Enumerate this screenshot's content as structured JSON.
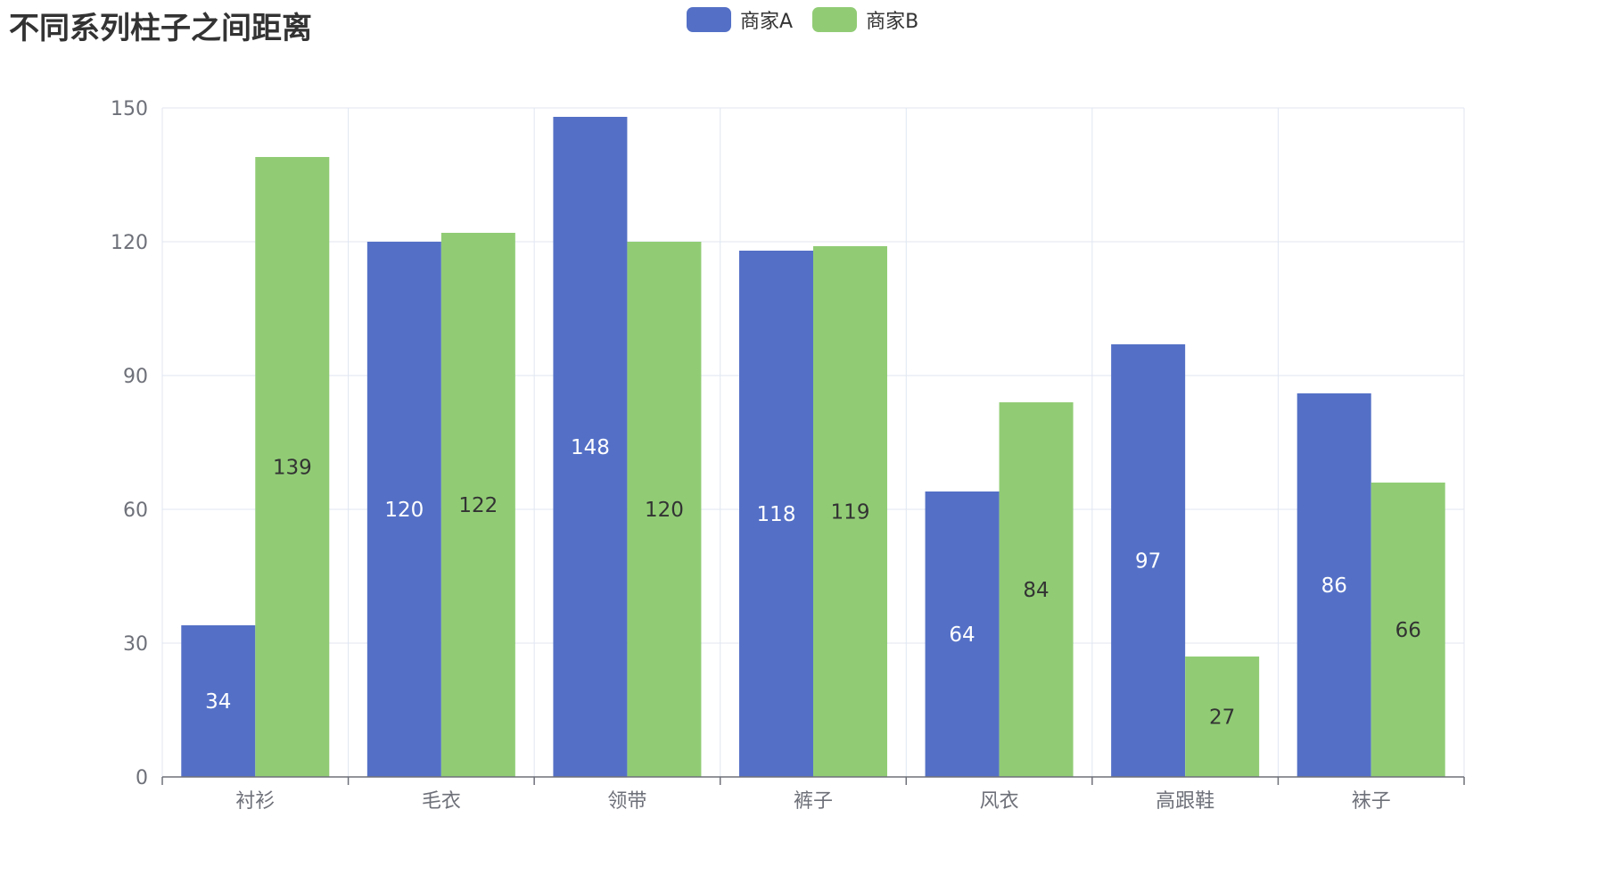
{
  "title": "不同系列柱子之间距离",
  "chart_data": {
    "type": "bar",
    "title": "不同系列柱子之间距离",
    "categories": [
      "衬衫",
      "毛衣",
      "领带",
      "裤子",
      "风衣",
      "高跟鞋",
      "袜子"
    ],
    "series": [
      {
        "name": "商家A",
        "color": "#5470c6",
        "label_color": "#ffffff",
        "values": [
          34,
          120,
          148,
          118,
          64,
          97,
          86
        ]
      },
      {
        "name": "商家B",
        "color": "#91cc75",
        "label_color": "#333333",
        "values": [
          139,
          122,
          120,
          119,
          84,
          27,
          66
        ]
      }
    ],
    "ylim": [
      0,
      150
    ],
    "yticks": [
      0,
      30,
      60,
      90,
      120,
      150
    ],
    "grid": true,
    "legend_position": "top-center",
    "data_labels": "inside-center",
    "axis_color": "#6e7079",
    "grid_color": "#e0e6f1"
  }
}
